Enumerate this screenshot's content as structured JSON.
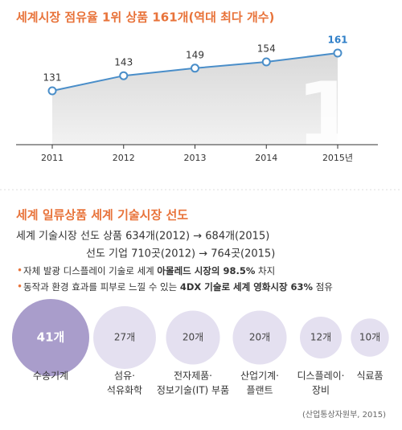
{
  "chart_data": [
    {
      "type": "line",
      "title": "세계시장 점유율 1위 상품 161개(역대 최다 개수)",
      "categories": [
        "2011",
        "2012",
        "2013",
        "2014",
        "2015년"
      ],
      "values": [
        131,
        143,
        149,
        154,
        161
      ],
      "color": "#4a8ec9",
      "highlight_color": "#2f7fc8"
    },
    {
      "type": "bubble",
      "title": "세계 일류상품 세계 기술시장 선도",
      "categories": [
        [
          "수송기계"
        ],
        [
          "섬유·",
          "석유화학"
        ],
        [
          "전자제품·",
          "정보기술(IT) 부품"
        ],
        [
          "산업기계·",
          "플랜트"
        ],
        [
          "디스플레이·",
          "장비"
        ],
        [
          "식료품"
        ]
      ],
      "values": [
        41,
        27,
        20,
        20,
        12,
        10
      ],
      "value_labels": [
        "41개",
        "27개",
        "20개",
        "20개",
        "12개",
        "10개"
      ],
      "colors": [
        "#a99dcb",
        "#e4e0f0",
        "#e4e0f0",
        "#e4e0f0",
        "#e4e0f0",
        "#e4e0f0"
      ]
    }
  ],
  "highlights": {
    "lines": [
      "세계 기술시장 선도 상품 634개(2012) → 684개(2015)",
      "선도 기업 710곳(2012) → 764곳(2015)"
    ],
    "bullets": [
      [
        {
          "text": "자체 발광 디스플레이 기술로 세계 ",
          "bold": false
        },
        {
          "text": "아몰레드 시장의 98.5%",
          "bold": true
        },
        {
          "text": " 차지",
          "bold": false
        }
      ],
      [
        {
          "text": "동작과 환경 효과를 피부로 느낄 수 있는 ",
          "bold": false
        },
        {
          "text": "4DX 기술로 세계 영화시장 63%",
          "bold": true
        },
        {
          "text": " 점유",
          "bold": false
        }
      ]
    ]
  },
  "source": "(산업통상자원부, 2015)"
}
